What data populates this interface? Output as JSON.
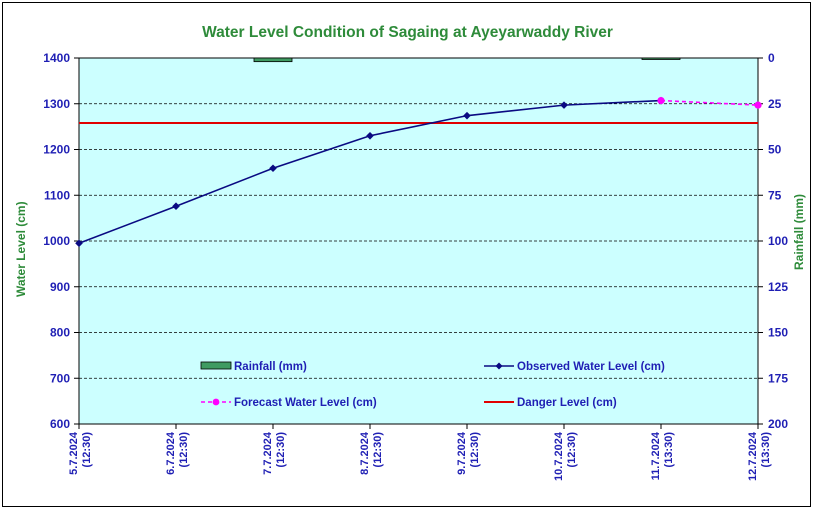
{
  "chart_data": {
    "type": "line",
    "title": "Water Level Condition of Sagaing at Ayeyarwaddy River",
    "ylabel": "Water Level (cm)",
    "y2label": "Rainfall (mm)",
    "ylim": [
      600,
      1400
    ],
    "y_ticks": [
      600,
      700,
      800,
      900,
      1000,
      1100,
      1200,
      1300,
      1400
    ],
    "y2lim": [
      0,
      200
    ],
    "y2_inverted": true,
    "y2_ticks": [
      0,
      25,
      50,
      75,
      100,
      125,
      150,
      175,
      200
    ],
    "categories": [
      [
        "5.7.2024",
        "(12:30)"
      ],
      [
        "6.7.2024",
        "(12:30)"
      ],
      [
        "7.7.2024",
        "(12:30)"
      ],
      [
        "8.7.2024",
        "(12:30)"
      ],
      [
        "9.7.2024",
        "(12:30)"
      ],
      [
        "10.7.2024",
        "(12:30)"
      ],
      [
        "11.7.2024",
        "(13:30)"
      ],
      [
        "12.7.2024",
        "(13:30)"
      ]
    ],
    "series": [
      {
        "name": "Rainfall (mm)",
        "kind": "bar",
        "axis": "right",
        "color": "#3f9b62",
        "values": [
          null,
          null,
          2,
          null,
          null,
          null,
          0.5,
          null
        ]
      },
      {
        "name": "Observed Water Level (cm)",
        "kind": "line",
        "axis": "left",
        "color": "#0a0a82",
        "values": [
          995,
          1076,
          1159,
          1230,
          1274,
          1297,
          1307,
          null
        ]
      },
      {
        "name": "Forecast Water Level (cm)",
        "kind": "dashed-line",
        "axis": "left",
        "color": "#ff00ff",
        "values": [
          null,
          null,
          null,
          null,
          null,
          null,
          1307,
          1297
        ]
      },
      {
        "name": "Danger Level (cm)",
        "kind": "hline",
        "axis": "left",
        "color": "#e00000",
        "value": 1258
      }
    ],
    "plot_background": "#ccffff",
    "grid": "horizontal-dashed",
    "legend_placement": "bottom-inside"
  }
}
